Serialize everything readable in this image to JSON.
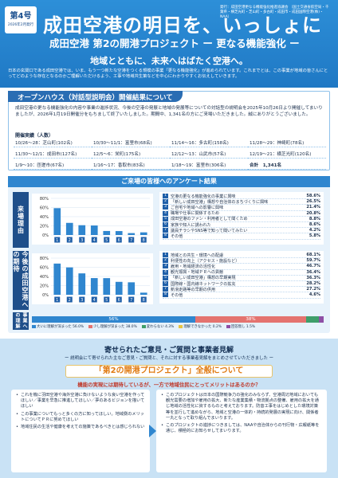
{
  "header": {
    "issue_no": "第4号",
    "issue_date": "2026年2月発行",
    "publisher": "発行：成田空港更なる機能強化推進協議会 （国土交通省航空局・千葉県・横芝光町・芝山町・多古町・成田市・成田国際空港(株)・NAA）",
    "title": "成田空港の明日を、いっしょに",
    "subtitle": "成田空港 第2の開港プロジェクト ー 更なる機能強化 ー",
    "slogan": "地域とともに、未来へはばたく空港へ。",
    "lead": "日本の玄関口である成田空港では、いま、もう一つ新たな空港をつくる規模の事業「更なる機能強化」が進められています。これまでとは、この事業が地域の皆さんにとってどのような存在となるのかご理解いただけるよう、工事や地域共生策などを中心にわかりやすくお伝えしていきます。"
  },
  "openhouse": {
    "heading": "オープンハウス（対話型説明会）開催結果について",
    "text": "成田空港の更なる機能強化の内容や事業の進捗状況、今後の空港の発展と地域の発展等についての対話型の説明会を2025年10月26日より開催してまいりましたが、2026年1月19日開催分をもちまして終了いたしました。期間中、1,341名の方にご来場いただきました。誠にありがとうございました。",
    "table_title": "開催実績（人数）",
    "cells": [
      "10/26〜28：芝山町(102名)",
      "10/30〜11/1：富里市(68名)",
      "11/14〜16：多古町(158名)",
      "11/28〜29：神崎町(78名)",
      "11/30〜12/1：成田市(127名)",
      "12/5〜6：栄町(175名)",
      "12/12〜13：山武市(57名)",
      "12/19〜21：横芝光町(120名)",
      "1/9〜10：匝瑳市(67名)",
      "1/16〜17：香取市(83名)",
      "1/18〜19：富里市(306名)",
      "合計　1,341名"
    ]
  },
  "survey": {
    "heading": "ご来場の皆様へのアンケート結果",
    "visit_label": "来場理由",
    "expect_label": "今後の成田空港への期待",
    "understand_label": "事業への理解",
    "visit_items": [
      {
        "no": "1",
        "label": "空港の更なる機能強化の事業に興味",
        "value": "58.6%"
      },
      {
        "no": "2",
        "label": "「新しい成田空港」構想や自治体のまちづくりに興味",
        "value": "26.5%"
      },
      {
        "no": "3",
        "label": "ご自宅や地域への影響に興味",
        "value": "21.4%"
      },
      {
        "no": "4",
        "label": "職場や仕事に関係するため",
        "value": "20.8%"
      },
      {
        "no": "5",
        "label": "成田空港のファン・利用者として聞くため",
        "value": "8.8%"
      },
      {
        "no": "6",
        "label": "家族や知人に誘われた",
        "value": "8.6%"
      },
      {
        "no": "7",
        "label": "議員チラシやSNS等で知って聞いてみたい",
        "value": "4.2%"
      },
      {
        "no": "8",
        "label": "その他",
        "value": "5.8%"
      }
    ],
    "expect_items": [
      {
        "no": "1",
        "label": "地域との共生・環境への配慮",
        "value": "68.1%"
      },
      {
        "no": "2",
        "label": "利便性の向上（アクセス・施設など）",
        "value": "59.7%"
      },
      {
        "no": "3",
        "label": "雇用・地域経済の活性化",
        "value": "46.7%"
      },
      {
        "no": "4",
        "label": "観光振興・地域ＰＲへの貢献",
        "value": "36.4%"
      },
      {
        "no": "5",
        "label": "「新しい成田空港」構想の早期実現",
        "value": "36.3%"
      },
      {
        "no": "6",
        "label": "国際線・国内線ネットワークの拡充",
        "value": "28.2%"
      },
      {
        "no": "7",
        "label": "新滑走路等の早期の供用",
        "value": "27.2%"
      },
      {
        "no": "8",
        "label": "その他",
        "value": "4.6%"
      }
    ],
    "visit_chart": {
      "ylim": [
        0,
        80
      ],
      "ticks": [
        "80%",
        "60%",
        "40%",
        "20%",
        "0%"
      ],
      "values": [
        58.6,
        26.5,
        21.4,
        20.8,
        8.8,
        8.6,
        4.2,
        5.8
      ],
      "categories": [
        "1",
        "2",
        "3",
        "4",
        "5",
        "6",
        "7",
        "8"
      ]
    },
    "expect_chart": {
      "ylim": [
        0,
        80
      ],
      "ticks": [
        "80%",
        "60%",
        "40%",
        "20%",
        "0%"
      ],
      "values": [
        68.1,
        59.7,
        46.7,
        36.4,
        36.3,
        28.2,
        27.2,
        4.6
      ],
      "categories": [
        "1",
        "2",
        "3",
        "4",
        "5",
        "6",
        "7",
        "8"
      ]
    },
    "understanding": [
      {
        "label": "56%",
        "value": 56.0,
        "color": "#2f86cf"
      },
      {
        "label": "38%",
        "value": 38.0,
        "color": "#e4736f"
      },
      {
        "label": "",
        "value": 4.3,
        "color": "#3f9e6a"
      },
      {
        "label": "",
        "value": 0.2,
        "color": "#e8c440"
      },
      {
        "label": "",
        "value": 1.5,
        "color": "#8e4fa5"
      }
    ],
    "understanding_legend": [
      "大いに理解が深まった 56.0%",
      "少し理解が深まった 38.0%",
      "変わらない 4.3%",
      "理解できなかった 0.2%",
      "回答無し 1.5%"
    ]
  },
  "opinions": {
    "title": "寄せられたご意見・ご質問と事業者見解",
    "subtitle": "ー 説明会にて寄せられた主なご意見・ご質問と、それに対する事業者見解をまとめさせていただきました ー",
    "banner": "「第2の開港プロジェクト」全般について",
    "question": "機能の実現には期待しているが、一方で地域住民にとってメリットはあるのか？",
    "left_items": [
      "これを機に羽田空港や海外空港に負けないような良い空港を作ってほしい／事業を早急に推進してほしい／夢のあるビジョンを描いてほしい",
      "この事業についてもっと多くの方に知ってほしい。地域側のメリットについてＰＲに努めてほしい",
      "地域住民の生活や健康を考えての施策であるべきとは感じられない"
    ],
    "right_items": [
      "このプロジェクトは日本の国際競争力の強化のみならず、空港周辺地域においても観光需要の増加や雇用の拡大、新たな産業集積・物流拠点の整備、雇用の拡大を通じ地域の活性化に資するものと考えております。防音工事をはじめとした環境対策等を並行して進めながら、地域と空港の一体的・持続的発展の実現に向け、関係者一丸となって取り組んでまいります。",
      "このプロジェクトの進捗につきましては、NAAや自治体からの刊行物・広報紙等を通じ、積極的にお知らせしてまいります。"
    ]
  }
}
